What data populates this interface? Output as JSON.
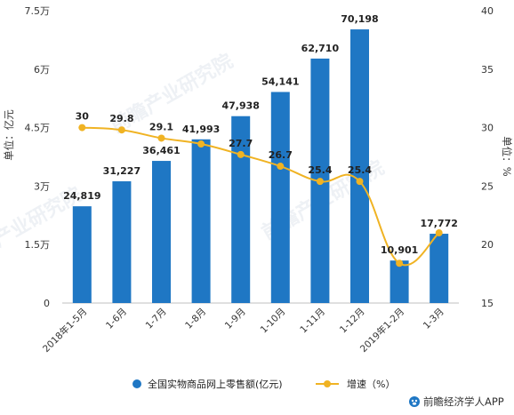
{
  "chart_data": {
    "type": "bar+line",
    "categories": [
      "2018年1-5月",
      "1-6月",
      "1-7月",
      "1-8月",
      "1-9月",
      "1-10月",
      "1-11月",
      "1-12月",
      "2019年1-2月",
      "1-3月"
    ],
    "series": [
      {
        "name": "全国实物商品网上零售额(亿元)",
        "type": "bar",
        "axis": "left",
        "color": "#1f77c4",
        "values": [
          24819,
          31227,
          36461,
          41993,
          47938,
          54141,
          62710,
          70198,
          10901,
          17772
        ],
        "labels": [
          "24,819",
          "31,227",
          "36,461",
          "41,993",
          "47,938",
          "54,141",
          "62,710",
          "70,198",
          "10,901",
          "17,772"
        ]
      },
      {
        "name": "增速（%）",
        "type": "line",
        "axis": "right",
        "color": "#f0b323",
        "values": [
          30,
          29.8,
          29.1,
          28.6,
          27.7,
          26.7,
          25.4,
          25.4,
          18.4,
          21
        ],
        "labels": [
          "30",
          "29.8",
          "29.1",
          "",
          "27.7",
          "26.7",
          "25.4",
          "25.4",
          "",
          ""
        ]
      }
    ],
    "yleft": {
      "label": "单位：亿元",
      "ylim": [
        0,
        75000
      ],
      "ticks": [
        0,
        15000,
        30000,
        45000,
        60000,
        75000
      ],
      "tick_labels": [
        "0",
        "1.5万",
        "3万",
        "4.5万",
        "6万",
        "7.5万"
      ]
    },
    "yright": {
      "label": "单位：%",
      "ylim": [
        15,
        40
      ],
      "ticks": [
        15,
        20,
        25,
        30,
        35,
        40
      ],
      "tick_labels": [
        "15",
        "20",
        "25",
        "30",
        "35",
        "40"
      ]
    },
    "grid": false,
    "legend": "bottom"
  },
  "watermark": "前瞻产业研究院",
  "credit": "前瞻经济学人APP",
  "icons": {
    "credit": "paw-logo-icon"
  }
}
